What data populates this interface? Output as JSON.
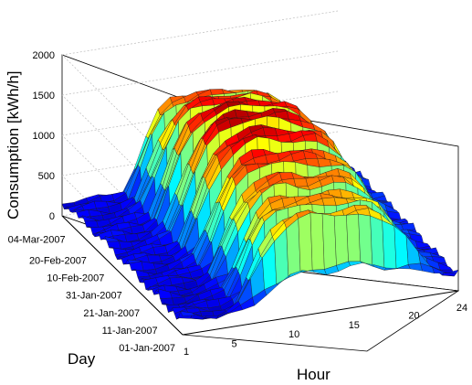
{
  "chart_data": {
    "type": "surface3d",
    "xlabel": "Hour",
    "ylabel": "Day",
    "zlabel": "Consumption [kWh/h]",
    "x_ticks": [
      "1",
      "5",
      "10",
      "15",
      "20",
      "24"
    ],
    "x_range": [
      1,
      24
    ],
    "y_ticks": [
      "01-Jan-2007",
      "11-Jan-2007",
      "21-Jan-2007",
      "31-Jan-2007",
      "10-Feb-2007",
      "20-Feb-2007",
      "04-Mar-2007"
    ],
    "y_range": [
      "01-Jan-2007",
      "10-Mar-2007"
    ],
    "z_ticks": [
      "0",
      "500",
      "1000",
      "1500",
      "2000"
    ],
    "z_range": [
      0,
      2000
    ],
    "grid": true,
    "colormap": "jet",
    "daily_profile_peak_weekday": [
      200,
      180,
      170,
      170,
      180,
      250,
      600,
      1000,
      1300,
      1450,
      1500,
      1520,
      1500,
      1480,
      1470,
      1450,
      1400,
      1300,
      1150,
      900,
      600,
      400,
      300,
      250
    ],
    "daily_profile_weekend": [
      200,
      180,
      170,
      170,
      180,
      200,
      250,
      350,
      420,
      480,
      520,
      540,
      530,
      520,
      500,
      480,
      460,
      440,
      420,
      380,
      330,
      280,
      240,
      220
    ]
  }
}
